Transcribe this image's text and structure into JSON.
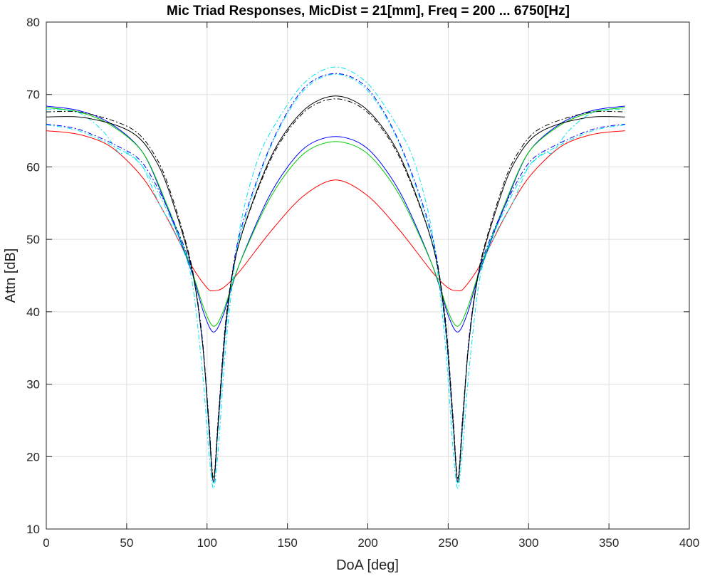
{
  "chart_data": {
    "type": "line",
    "title": "Mic Triad Responses, MicDist = 21[mm], Freq = 200 ... 6750[Hz]",
    "xlabel": "DoA [deg]",
    "ylabel": "Attn [dB]",
    "xlim": [
      0,
      400
    ],
    "ylim": [
      10,
      80
    ],
    "xticks": [
      "0",
      "50",
      "100",
      "150",
      "200",
      "250",
      "300",
      "350",
      "400"
    ],
    "yticks": [
      "10",
      "20",
      "30",
      "40",
      "50",
      "60",
      "70",
      "80"
    ],
    "grid": true,
    "legend": "none",
    "series": [
      {
        "color": "#ff0000",
        "style": "solid",
        "x": [
          0,
          20,
          40,
          60,
          75,
          90,
          100,
          104,
          110,
          120,
          140,
          160,
          180,
          200,
          220,
          240,
          250,
          256,
          260,
          270,
          285,
          300,
          320,
          340,
          360
        ],
        "y": [
          65.0,
          64.5,
          62.8,
          58.5,
          53.0,
          46.5,
          43.3,
          42.9,
          43.3,
          45.5,
          51.2,
          56.0,
          58.2,
          56.0,
          51.2,
          45.5,
          43.3,
          42.9,
          43.3,
          46.5,
          53.0,
          58.5,
          62.8,
          64.5,
          65.0
        ]
      },
      {
        "color": "#0000ff",
        "style": "solid",
        "x": [
          0,
          20,
          40,
          60,
          75,
          90,
          98,
          104,
          110,
          120,
          140,
          160,
          180,
          200,
          220,
          240,
          250,
          256,
          262,
          270,
          285,
          300,
          320,
          340,
          360
        ],
        "y": [
          68.4,
          67.8,
          66.0,
          62.0,
          54.5,
          45.8,
          39.8,
          37.2,
          39.5,
          46.5,
          56.5,
          62.5,
          64.2,
          62.5,
          56.5,
          46.5,
          39.5,
          37.2,
          39.8,
          45.8,
          54.5,
          62.0,
          66.0,
          67.8,
          68.4
        ]
      },
      {
        "color": "#00cc00",
        "style": "solid",
        "x": [
          0,
          20,
          40,
          60,
          75,
          90,
          98,
          104,
          110,
          120,
          140,
          160,
          180,
          200,
          220,
          240,
          250,
          256,
          262,
          270,
          285,
          300,
          320,
          340,
          360
        ],
        "y": [
          68.2,
          67.6,
          65.8,
          62.0,
          54.8,
          46.0,
          40.5,
          38.0,
          40.0,
          46.5,
          56.0,
          61.8,
          63.5,
          61.8,
          56.0,
          46.5,
          40.0,
          38.0,
          40.5,
          46.0,
          54.8,
          62.0,
          65.8,
          67.6,
          68.2
        ]
      },
      {
        "color": "#00e5ee",
        "style": "dashdot",
        "x": [
          0,
          20,
          35,
          45,
          50,
          60,
          70,
          80,
          90,
          97,
          101,
          104,
          107,
          112,
          120,
          130,
          140,
          160,
          180,
          200,
          220,
          230,
          240,
          248,
          253,
          256,
          259,
          263,
          270,
          280,
          290,
          300,
          310,
          315,
          325,
          340,
          360
        ],
        "y": [
          68.0,
          67.5,
          65.0,
          62.0,
          62.0,
          60.0,
          55.0,
          51.0,
          45.0,
          32.0,
          21.0,
          15.6,
          21.0,
          36.0,
          51.0,
          60.0,
          65.0,
          71.5,
          73.8,
          71.5,
          65.0,
          60.0,
          51.0,
          36.0,
          21.0,
          15.6,
          21.0,
          32.0,
          45.0,
          51.0,
          55.0,
          60.0,
          62.0,
          62.0,
          65.0,
          67.5,
          68.0
        ]
      },
      {
        "color": "#00e5ee",
        "style": "dashdot",
        "x": [
          0,
          20,
          45,
          60,
          75,
          90,
          97,
          101,
          104,
          107,
          112,
          120,
          140,
          160,
          180,
          200,
          220,
          240,
          248,
          253,
          256,
          259,
          263,
          270,
          285,
          300,
          315,
          340,
          360
        ],
        "y": [
          65.8,
          65.0,
          62.5,
          60.0,
          54.0,
          46.0,
          36.0,
          24.0,
          16.2,
          24.0,
          38.0,
          50.0,
          63.0,
          70.5,
          72.8,
          70.5,
          63.0,
          50.0,
          38.0,
          24.0,
          16.2,
          24.0,
          36.0,
          46.0,
          54.0,
          60.0,
          62.5,
          65.0,
          65.8
        ]
      },
      {
        "color": "#0000ff",
        "style": "dashdot",
        "x": [
          0,
          20,
          45,
          60,
          75,
          90,
          97,
          101,
          104,
          107,
          112,
          120,
          140,
          160,
          180,
          200,
          220,
          240,
          248,
          253,
          256,
          259,
          263,
          270,
          285,
          300,
          315,
          340,
          360
        ],
        "y": [
          65.9,
          65.2,
          62.8,
          60.5,
          54.5,
          46.2,
          36.5,
          24.5,
          16.5,
          24.5,
          38.5,
          50.5,
          63.2,
          70.8,
          72.9,
          70.8,
          63.2,
          50.5,
          38.5,
          24.5,
          16.5,
          24.5,
          36.5,
          46.2,
          54.5,
          60.5,
          62.8,
          65.2,
          65.9
        ]
      },
      {
        "color": "#000000",
        "style": "solid",
        "x": [
          0,
          20,
          40,
          55,
          65,
          75,
          90,
          97,
          101,
          104,
          107,
          112,
          120,
          140,
          160,
          180,
          200,
          220,
          240,
          248,
          253,
          256,
          259,
          263,
          270,
          285,
          295,
          305,
          320,
          340,
          360
        ],
        "y": [
          66.9,
          66.9,
          66.0,
          64.5,
          62.0,
          57.5,
          46.5,
          36.0,
          25.0,
          16.5,
          25.0,
          39.0,
          49.5,
          61.5,
          67.8,
          69.8,
          67.8,
          61.5,
          49.5,
          39.0,
          25.0,
          16.5,
          25.0,
          36.0,
          46.5,
          57.5,
          62.0,
          64.5,
          66.0,
          66.9,
          66.9
        ]
      },
      {
        "color": "#000000",
        "style": "dashdot",
        "x": [
          0,
          20,
          40,
          55,
          65,
          75,
          90,
          97,
          101,
          104,
          107,
          112,
          120,
          140,
          160,
          180,
          200,
          220,
          240,
          248,
          253,
          256,
          259,
          263,
          270,
          285,
          295,
          305,
          320,
          340,
          360
        ],
        "y": [
          67.6,
          67.6,
          66.5,
          65.0,
          62.5,
          58.0,
          46.8,
          36.0,
          25.5,
          17.0,
          25.5,
          39.5,
          49.5,
          61.2,
          67.5,
          69.4,
          67.5,
          61.2,
          49.5,
          39.5,
          25.5,
          17.0,
          25.5,
          36.0,
          46.8,
          58.0,
          62.5,
          65.0,
          66.5,
          67.6,
          67.6
        ]
      }
    ]
  }
}
